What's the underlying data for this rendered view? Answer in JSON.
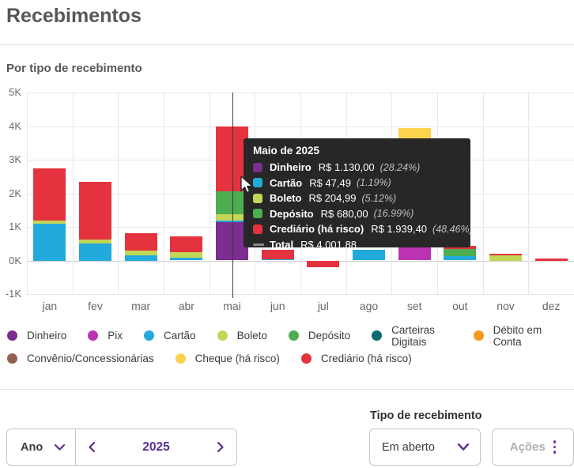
{
  "page": {
    "title": "Recebimentos",
    "section_title": "Por tipo de recebimento"
  },
  "chart_data": {
    "type": "bar",
    "stacked": true,
    "title": "Por tipo de recebimento",
    "unit": "R$ thousands (K)",
    "categories": [
      "jan",
      "fev",
      "mar",
      "abr",
      "mai",
      "jun",
      "jul",
      "ago",
      "set",
      "out",
      "nov",
      "dez"
    ],
    "ylim": [
      -1,
      5
    ],
    "yticks": [
      "5K",
      "4K",
      "3K",
      "2K",
      "1K",
      "0K",
      "-1K"
    ],
    "grid": true,
    "highlight_category": "mai",
    "series_colors": {
      "Dinheiro": "#7b2d90",
      "Pix": "#bb33b2",
      "Cartão": "#22aadc",
      "Boleto": "#c3d655",
      "Depósito": "#4cae50",
      "Carteiras Digitais": "#0b6a6f",
      "Débito em Conta": "#f8981d",
      "Convênio/Concessionárias": "#95604f",
      "Cheque (há risco)": "#fbd34f",
      "Crediário (há risco)": "#e4333e"
    },
    "series": [
      {
        "name": "Dinheiro",
        "values": [
          0,
          0,
          0,
          0,
          1.13,
          0,
          0,
          0,
          0,
          0,
          0,
          0
        ]
      },
      {
        "name": "Pix",
        "values": [
          0,
          0,
          0,
          0,
          0,
          0,
          0,
          0,
          3.57,
          0,
          0,
          0
        ]
      },
      {
        "name": "Cartão",
        "values": [
          1.1,
          0.5,
          0.15,
          0.09,
          0.05,
          0.04,
          0,
          0.31,
          0,
          0.12,
          0,
          0
        ]
      },
      {
        "name": "Boleto",
        "values": [
          0.08,
          0.13,
          0.14,
          0.16,
          0.2,
          0,
          0,
          0,
          0,
          0,
          0.15,
          0
        ]
      },
      {
        "name": "Depósito",
        "values": [
          0,
          0,
          0,
          0,
          0.68,
          0,
          0,
          0,
          0,
          0.21,
          0,
          0
        ]
      },
      {
        "name": "Carteiras Digitais",
        "values": [
          0,
          0,
          0,
          0,
          0,
          0,
          0,
          0,
          0,
          0,
          0,
          0
        ]
      },
      {
        "name": "Débito em Conta",
        "values": [
          0,
          0,
          0,
          0,
          0,
          0,
          0,
          0,
          0,
          0,
          0,
          0
        ]
      },
      {
        "name": "Convênio/Concessionárias",
        "values": [
          0,
          0,
          0,
          0,
          0,
          0,
          0,
          0,
          0,
          0,
          0,
          0
        ]
      },
      {
        "name": "Cheque (há risco)",
        "values": [
          0,
          0,
          0,
          0,
          0,
          0,
          0,
          0,
          0.38,
          0,
          0,
          0
        ]
      },
      {
        "name": "Crediário (há risco)",
        "values": [
          1.57,
          1.72,
          0.53,
          0.47,
          1.94,
          0.27,
          -0.19,
          0,
          0,
          0.1,
          0.06,
          0.05
        ]
      }
    ]
  },
  "tooltip": {
    "title": "Maio de 2025",
    "rows": [
      {
        "label": "Dinheiro",
        "value": "R$ 1.130,00",
        "pct": "(28.24%)",
        "color": "#7b2d90"
      },
      {
        "label": "Cartão",
        "value": "R$ 47,49",
        "pct": "(1.19%)",
        "color": "#22aadc"
      },
      {
        "label": "Boleto",
        "value": "R$ 204,99",
        "pct": "(5.12%)",
        "color": "#c3d655"
      },
      {
        "label": "Depósito",
        "value": "R$ 680,00",
        "pct": "(16.99%)",
        "color": "#4cae50"
      },
      {
        "label": "Crediário (há risco)",
        "value": "R$ 1.939,40",
        "pct": "(48.46%)",
        "color": "#e4333e"
      },
      {
        "label": "Total",
        "value": "R$ 4.001,88",
        "pct": "",
        "color": "dash"
      }
    ]
  },
  "legend": {
    "rows": [
      [
        "Dinheiro",
        "Pix",
        "Cartão",
        "Boleto",
        "Depósito",
        "Carteiras Digitais",
        "Débito em Conta"
      ],
      [
        "Convênio/Concessionárias",
        "Cheque (há risco)",
        "Crediário (há risco)"
      ]
    ]
  },
  "controls": {
    "period_label": "Ano",
    "year": "2025",
    "receipt_type_label": "Tipo de recebimento",
    "receipt_type_value": "Em aberto",
    "actions_label": "Ações"
  },
  "colors": {
    "accent_purple": "#5c2d91",
    "tooltip_bg": "#272727",
    "text_gray": "#575757"
  }
}
